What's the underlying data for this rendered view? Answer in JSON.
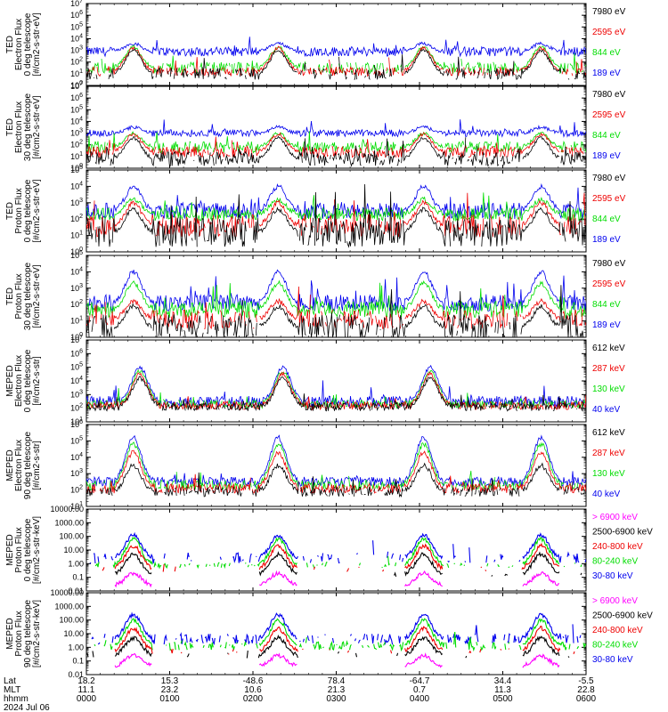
{
  "colors": {
    "black": "#000000",
    "red": "#ee0000",
    "green": "#00dd00",
    "blue": "#0000ee",
    "magenta": "#ff00ff"
  },
  "chart_data": [
    {
      "type": "line",
      "ylabel": [
        "TED",
        "Electron Flux",
        "0 deg telescope",
        "[#/cm2-s-str-eV]"
      ],
      "scale": "log",
      "ytick_style": "exp",
      "ylim": [
        0,
        7
      ],
      "series": [
        {
          "name": "7980 eV",
          "color": "black",
          "base": 1.0,
          "noise": 0.5,
          "peak_height": 3.0,
          "density": 0.7
        },
        {
          "name": "2595 eV",
          "color": "red",
          "base": 1.2,
          "noise": 0.4,
          "peak_height": 3.2,
          "density": 0.8
        },
        {
          "name": "844 eV",
          "color": "green",
          "base": 1.5,
          "noise": 0.5,
          "peak_height": 3.3,
          "density": 0.85
        },
        {
          "name": "189 eV",
          "color": "blue",
          "base": 2.9,
          "noise": 0.4,
          "peak_height": 3.6,
          "density": 1.0
        }
      ]
    },
    {
      "type": "line",
      "ylabel": [
        "TED",
        "Electron Flux",
        "30 deg telescope",
        "[#/cm2-s-str-eV]"
      ],
      "scale": "log",
      "ytick_style": "exp",
      "ylim": [
        0,
        7
      ],
      "series": [
        {
          "name": "7980 eV",
          "color": "black",
          "base": 0.8,
          "noise": 0.6,
          "peak_height": 2.6,
          "density": 0.9
        },
        {
          "name": "2595 eV",
          "color": "red",
          "base": 1.4,
          "noise": 0.5,
          "peak_height": 2.9,
          "density": 0.9
        },
        {
          "name": "844 eV",
          "color": "green",
          "base": 1.8,
          "noise": 0.5,
          "peak_height": 3.0,
          "density": 0.9
        },
        {
          "name": "189 eV",
          "color": "blue",
          "base": 3.0,
          "noise": 0.3,
          "peak_height": 3.5,
          "density": 1.0
        }
      ]
    },
    {
      "type": "line",
      "ylabel": [
        "TED",
        "Proton Flux",
        "0 deg telescope",
        "[#/cm2-s-str-eV]"
      ],
      "scale": "log",
      "ytick_style": "exp",
      "ylim": [
        0,
        5
      ],
      "series": [
        {
          "name": "7980 eV",
          "color": "black",
          "base": 1.2,
          "noise": 0.9,
          "peak_height": 2.6,
          "density": 0.9
        },
        {
          "name": "2595 eV",
          "color": "red",
          "base": 1.6,
          "noise": 0.7,
          "peak_height": 3.0,
          "density": 0.8
        },
        {
          "name": "844 eV",
          "color": "green",
          "base": 2.3,
          "noise": 0.4,
          "peak_height": 3.2,
          "density": 1.0
        },
        {
          "name": "189 eV",
          "color": "blue",
          "base": 2.5,
          "noise": 0.5,
          "peak_height": 4.0,
          "density": 1.0
        }
      ]
    },
    {
      "type": "line",
      "ylabel": [
        "TED",
        "Proton Flux",
        "30 deg telescope",
        "[#/cm2-s-str-eV]"
      ],
      "scale": "log",
      "ytick_style": "exp",
      "ylim": [
        0,
        5
      ],
      "series": [
        {
          "name": "7980 eV",
          "color": "black",
          "base": 0.6,
          "noise": 0.8,
          "peak_height": 1.9,
          "density": 0.8
        },
        {
          "name": "2595 eV",
          "color": "red",
          "base": 1.1,
          "noise": 0.6,
          "peak_height": 2.2,
          "density": 0.8
        },
        {
          "name": "844 eV",
          "color": "green",
          "base": 1.7,
          "noise": 0.5,
          "peak_height": 3.3,
          "density": 1.0
        },
        {
          "name": "189 eV",
          "color": "blue",
          "base": 2.1,
          "noise": 0.5,
          "peak_height": 4.0,
          "density": 1.0
        }
      ]
    },
    {
      "type": "line",
      "ylabel": [
        "MEPED",
        "Electron Flux",
        "0 deg telescope",
        "[#/cm2-s-str]"
      ],
      "scale": "log",
      "ytick_style": "exp",
      "ylim": [
        1,
        7
      ],
      "series": [
        {
          "name": "612 keV",
          "color": "black",
          "base": 2.1,
          "noise": 0.3,
          "peak_height": 4.2,
          "density": 0.9
        },
        {
          "name": "287 keV",
          "color": "red",
          "base": 2.2,
          "noise": 0.3,
          "peak_height": 4.5,
          "density": 0.9
        },
        {
          "name": "130 keV",
          "color": "green",
          "base": 2.3,
          "noise": 0.3,
          "peak_height": 4.7,
          "density": 0.9
        },
        {
          "name": "40 keV",
          "color": "blue",
          "base": 2.5,
          "noise": 0.4,
          "peak_height": 5.0,
          "density": 1.0
        }
      ]
    },
    {
      "type": "line",
      "ylabel": [
        "MEPED",
        "Electron Flux",
        "90 deg telescope",
        "[#/cm2-s-str]"
      ],
      "scale": "log",
      "ytick_style": "exp",
      "ylim": [
        1,
        6
      ],
      "series": [
        {
          "name": "612 keV",
          "color": "black",
          "base": 1.9,
          "noise": 0.3,
          "peak_height": 3.5,
          "density": 0.8
        },
        {
          "name": "287 keV",
          "color": "red",
          "base": 2.1,
          "noise": 0.3,
          "peak_height": 4.3,
          "density": 0.9
        },
        {
          "name": "130 keV",
          "color": "green",
          "base": 2.3,
          "noise": 0.3,
          "peak_height": 4.8,
          "density": 0.9
        },
        {
          "name": "40 keV",
          "color": "blue",
          "base": 2.5,
          "noise": 0.3,
          "peak_height": 5.2,
          "density": 1.0
        }
      ]
    },
    {
      "type": "scatter",
      "ylabel": [
        "MEPED",
        "Proton Flux",
        "0 deg telescope",
        "[#/cm2-s-str-keV]"
      ],
      "scale": "log",
      "ytick_style": "decimal",
      "ylim": [
        -2,
        4
      ],
      "series": [
        {
          "name": "> 6900 keV",
          "color": "magenta",
          "base": -1.6,
          "noise": 0.2,
          "peak_height": -0.7,
          "density": 0.0
        },
        {
          "name": "2500-6900 keV",
          "color": "black",
          "base": -0.8,
          "noise": 0.2,
          "peak_height": 0.7,
          "density": 0.15
        },
        {
          "name": "240-800 keV",
          "color": "red",
          "base": -0.4,
          "noise": 0.2,
          "peak_height": 1.3,
          "density": 0.15
        },
        {
          "name": "80-240 keV",
          "color": "green",
          "base": -0.1,
          "noise": 0.2,
          "peak_height": 1.8,
          "density": 0.4
        },
        {
          "name": "30-80 keV",
          "color": "blue",
          "base": 0.4,
          "noise": 0.4,
          "peak_height": 2.1,
          "density": 0.4
        }
      ]
    },
    {
      "type": "scatter",
      "ylabel": [
        "MEPED",
        "Proton Flux",
        "90 deg telescope",
        "[#/cm2-s-str-keV]"
      ],
      "scale": "log",
      "ytick_style": "decimal",
      "ylim": [
        -2,
        4
      ],
      "series": [
        {
          "name": "> 6900 keV",
          "color": "magenta",
          "base": -1.4,
          "noise": 0.2,
          "peak_height": -0.6,
          "density": 0.0
        },
        {
          "name": "2500-6900 keV",
          "color": "black",
          "base": -0.6,
          "noise": 0.2,
          "peak_height": 0.7,
          "density": 0.2
        },
        {
          "name": "240-800 keV",
          "color": "red",
          "base": -0.3,
          "noise": 0.2,
          "peak_height": 1.4,
          "density": 0.2
        },
        {
          "name": "80-240 keV",
          "color": "green",
          "base": 0.1,
          "noise": 0.3,
          "peak_height": 2.0,
          "density": 0.5
        },
        {
          "name": "30-80 keV",
          "color": "blue",
          "base": 0.6,
          "noise": 0.4,
          "peak_height": 2.4,
          "density": 0.6
        }
      ]
    }
  ],
  "time_axis": {
    "rows": [
      {
        "label": "Lat",
        "values": [
          "18.2",
          "15.3",
          "-48.6",
          "78.4",
          "-64.7",
          "34.4",
          "-5.5"
        ]
      },
      {
        "label": "MLT",
        "values": [
          "11.1",
          "23.2",
          "10.6",
          "21.3",
          "0.7",
          "11.3",
          "22.8"
        ]
      },
      {
        "label": "hhmm",
        "values": [
          "0000",
          "0100",
          "0200",
          "0300",
          "0400",
          "0500",
          "0600"
        ]
      }
    ],
    "date": "2024 Jul 06"
  }
}
